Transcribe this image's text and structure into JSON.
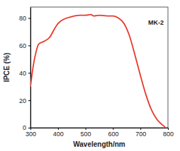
{
  "chart_data": {
    "type": "line",
    "x_label": "Wavelength/nm",
    "y_label": "IPCE (%)",
    "annotations": [
      "MK-2"
    ],
    "x": [
      300,
      310,
      320,
      330,
      350,
      370,
      390,
      400,
      420,
      450,
      480,
      500,
      520,
      530,
      550,
      580,
      600,
      620,
      640,
      660,
      680,
      700,
      720,
      740,
      760,
      780,
      790
    ],
    "values": [
      30,
      45,
      55,
      61,
      63,
      66,
      73,
      76,
      79,
      81,
      82,
      82,
      82.5,
      81.5,
      82,
      81.5,
      81.5,
      80,
      76,
      67,
      53,
      38,
      24,
      13,
      6,
      2,
      0.5
    ],
    "color": "#e8392c",
    "xlim": [
      300,
      800
    ],
    "xticks": [
      300,
      400,
      500,
      600,
      700,
      800
    ],
    "ylim": [
      0,
      88
    ],
    "yticks": [
      0,
      20,
      40,
      60,
      80
    ],
    "grid": false
  }
}
